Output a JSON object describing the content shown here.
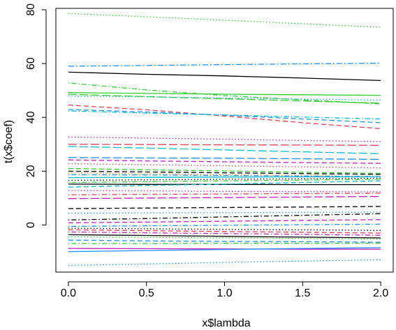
{
  "chart_data": {
    "type": "line",
    "title": "",
    "xlabel": "x$lambda",
    "ylabel": "t(x$coef)",
    "xlim": [
      -0.08,
      2.08
    ],
    "ylim": [
      -17.5,
      80.5
    ],
    "xticks": [
      0.0,
      0.5,
      1.0,
      1.5,
      2.0
    ],
    "xtick_labels": [
      "0.0",
      "0.5",
      "1.0",
      "1.5",
      "2.0"
    ],
    "yticks": [
      0,
      20,
      40,
      60,
      80
    ],
    "ytick_labels": [
      "0",
      "20",
      "40",
      "60",
      "80"
    ],
    "grid": false,
    "legend": "none",
    "x": [
      0.0,
      0.5,
      1.0,
      1.5,
      2.0
    ],
    "series": [
      {
        "color": "#32cd32",
        "dash": "dot",
        "values": [
          78.6,
          77.4,
          76.1,
          74.8,
          73.5
        ]
      },
      {
        "color": "#1e90ff",
        "dash": "dashdot",
        "values": [
          59.0,
          59.3,
          59.6,
          59.9,
          60.1
        ]
      },
      {
        "color": "#000000",
        "dash": "solid",
        "values": [
          56.8,
          56.0,
          55.4,
          54.6,
          53.7
        ]
      },
      {
        "color": "#32cd32",
        "dash": "dotdash",
        "values": [
          52.8,
          50.2,
          48.1,
          46.5,
          45.0
        ]
      },
      {
        "color": "#32cd32",
        "dash": "solid",
        "values": [
          49.2,
          48.9,
          48.6,
          48.4,
          48.2
        ]
      },
      {
        "color": "#32cd32",
        "dash": "longdash",
        "values": [
          48.6,
          47.7,
          46.9,
          46.1,
          45.3
        ]
      },
      {
        "color": "#00bcd4",
        "dash": "dot",
        "values": [
          48.0,
          47.6,
          47.2,
          46.8,
          46.4
        ]
      },
      {
        "color": "#e0405a",
        "dash": "dash",
        "values": [
          44.6,
          42.8,
          40.5,
          38.0,
          35.8
        ]
      },
      {
        "color": "#1e90ff",
        "dash": "dash",
        "values": [
          42.9,
          42.0,
          40.8,
          39.4,
          38.0
        ]
      },
      {
        "color": "#00bcd4",
        "dash": "dotdash",
        "values": [
          42.4,
          41.6,
          40.9,
          40.1,
          39.4
        ]
      },
      {
        "color": "#c020c0",
        "dash": "dot",
        "values": [
          32.7,
          32.3,
          31.9,
          31.4,
          31.0
        ]
      },
      {
        "color": "#e0405a",
        "dash": "longdash",
        "values": [
          30.0,
          29.9,
          29.8,
          29.7,
          29.6
        ]
      },
      {
        "color": "#00bcd4",
        "dash": "longdash",
        "values": [
          29.2,
          28.6,
          27.9,
          27.2,
          26.5
        ]
      },
      {
        "color": "#1e90ff",
        "dash": "longdash",
        "values": [
          25.1,
          24.9,
          24.8,
          24.6,
          24.4
        ]
      },
      {
        "color": "#c020c0",
        "dash": "dash",
        "values": [
          24.2,
          23.8,
          23.5,
          23.2,
          22.9
        ]
      },
      {
        "color": "#e0405a",
        "dash": "dot",
        "values": [
          22.8,
          22.4,
          22.0,
          21.6,
          21.2
        ]
      },
      {
        "color": "#32cd32",
        "dash": "dash",
        "values": [
          21.0,
          20.5,
          20.1,
          19.6,
          19.2
        ]
      },
      {
        "color": "#000000",
        "dash": "dash",
        "values": [
          20.0,
          19.7,
          19.4,
          19.1,
          18.8
        ]
      },
      {
        "color": "#ff8c00",
        "dash": "dot",
        "values": [
          19.4,
          19.0,
          18.7,
          18.3,
          18.0
        ]
      },
      {
        "color": "#1e90ff",
        "dash": "dotdash",
        "values": [
          18.7,
          18.6,
          18.4,
          18.2,
          18.0
        ]
      },
      {
        "color": "#00bcd4",
        "dash": "solid",
        "values": [
          17.6,
          17.7,
          17.8,
          17.9,
          17.9
        ]
      },
      {
        "color": "#000000",
        "dash": "dot",
        "values": [
          16.6,
          16.8,
          17.0,
          17.2,
          17.4
        ]
      },
      {
        "color": "#32cd32",
        "dash": "dotdash",
        "values": [
          15.8,
          16.1,
          16.4,
          16.7,
          17.0
        ]
      },
      {
        "color": "#000000",
        "dash": "solid",
        "values": [
          15.2,
          15.1,
          15.1,
          15.0,
          15.0
        ]
      },
      {
        "color": "#00bcd4",
        "dash": "dash",
        "values": [
          14.1,
          14.7,
          15.2,
          15.8,
          16.4
        ]
      },
      {
        "color": "#c020c0",
        "dash": "dot",
        "values": [
          12.8,
          12.7,
          12.5,
          12.4,
          12.3
        ]
      },
      {
        "color": "#e0405a",
        "dash": "dotdash",
        "values": [
          11.2,
          11.4,
          11.5,
          11.7,
          11.8
        ]
      },
      {
        "color": "#c020c0",
        "dash": "longdash",
        "values": [
          9.8,
          10.0,
          10.2,
          10.4,
          10.6
        ]
      },
      {
        "color": "#000000",
        "dash": "dash",
        "values": [
          6.1,
          6.3,
          6.5,
          6.7,
          6.9
        ]
      },
      {
        "color": "#1e90ff",
        "dash": "dot",
        "values": [
          4.4,
          4.5,
          4.6,
          4.7,
          4.8
        ]
      },
      {
        "color": "#000000",
        "dash": "dotdash",
        "values": [
          1.9,
          2.4,
          3.0,
          3.6,
          4.2
        ]
      },
      {
        "color": "#c020c0",
        "dash": "dash",
        "values": [
          0.8,
          1.1,
          1.4,
          1.7,
          2.0
        ]
      },
      {
        "color": "#1e90ff",
        "dash": "dotdash",
        "values": [
          -0.5,
          -0.3,
          -0.1,
          0.1,
          0.3
        ]
      },
      {
        "color": "#000000",
        "dash": "dot",
        "values": [
          -1.2,
          -1.4,
          -1.6,
          -1.8,
          -2.0
        ]
      },
      {
        "color": "#e0405a",
        "dash": "dash",
        "values": [
          -1.8,
          -2.1,
          -2.4,
          -2.7,
          -3.0
        ]
      },
      {
        "color": "#c020c0",
        "dash": "dotdash",
        "values": [
          -2.6,
          -2.9,
          -3.2,
          -3.5,
          -3.8
        ]
      },
      {
        "color": "#000000",
        "dash": "solid",
        "values": [
          -3.6,
          -3.9,
          -4.2,
          -4.5,
          -4.8
        ]
      },
      {
        "color": "#32cd32",
        "dash": "dot",
        "values": [
          -4.4,
          -4.6,
          -4.8,
          -5.0,
          -5.2
        ]
      },
      {
        "color": "#1e90ff",
        "dash": "dash",
        "values": [
          -5.6,
          -5.9,
          -6.1,
          -6.2,
          -6.4
        ]
      },
      {
        "color": "#32cd32",
        "dash": "dotdash",
        "values": [
          -6.9,
          -6.9,
          -6.8,
          -6.8,
          -6.8
        ]
      },
      {
        "color": "#c020c0",
        "dash": "solid",
        "values": [
          -8.7,
          -8.8,
          -8.9,
          -9.0,
          -9.0
        ]
      },
      {
        "color": "#1e90ff",
        "dash": "solid",
        "values": [
          -9.9,
          -9.5,
          -9.1,
          -8.7,
          -8.4
        ]
      },
      {
        "color": "#1e90ff",
        "dash": "dot",
        "values": [
          -15.0,
          -14.5,
          -13.9,
          -13.4,
          -12.9
        ]
      }
    ]
  }
}
